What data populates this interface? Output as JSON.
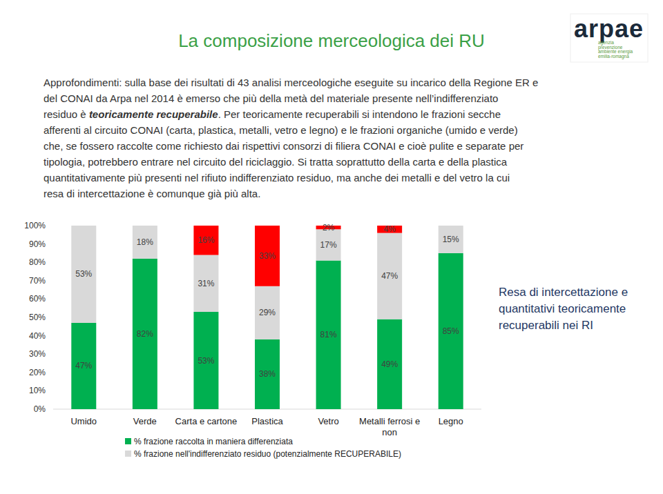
{
  "header": {
    "title": "La composizione merceologica dei RU",
    "intro": [
      [
        {
          "text": "Approfondimenti: sulla base dei risultati di 43 analisi merceologiche eseguite su incarico della Regione ER e"
        }
      ],
      [
        {
          "text": "del CONAI da Arpa nel 2014 è emerso  che più della metà del materiale presente nell’indifferenziato"
        }
      ],
      [
        {
          "text": "residuo è "
        },
        {
          "text": "teoricamente recuperabile",
          "bold_italic": true
        },
        {
          "text": ". Per teoricamente recuperabili si intendono le frazioni secche"
        }
      ],
      [
        {
          "text": "afferenti al circuito CONAI (carta, plastica, metalli, vetro e legno) e le frazioni organiche (umido e verde)"
        }
      ],
      [
        {
          "text": "che, se fossero raccolte come richiesto dai rispettivi consorzi di filiera CONAI e cioè pulite e separate per"
        }
      ],
      [
        {
          "text": "tipologia, potrebbero entrare nel circuito del riciclaggio. Si tratta soprattutto della carta e della plastica"
        }
      ],
      [
        {
          "text": "quantitativamente più presenti nel rifiuto indifferenziato residuo, ma anche dei metalli e del vetro la cui"
        }
      ],
      [
        {
          "text": "resa di intercettazione è comunque già più alta."
        }
      ]
    ]
  },
  "logo": {
    "name": "arpae",
    "lines": [
      "agenzia",
      "prevenzione",
      "ambiente energia",
      "emilia-romagna"
    ]
  },
  "chart_data": {
    "type": "bar",
    "stacked": true,
    "data_labels": true,
    "legend": "bottom",
    "annotation": [
      "Resa di intercettazione e",
      "quantitativi teoricamente",
      "recuperabili nei RI"
    ],
    "categories": [
      "Umido",
      "Verde",
      "Carta e cartone",
      "Plastica",
      "Vetro",
      "Metalli ferrosi e non",
      "Legno"
    ],
    "series": [
      {
        "name": "% frazione raccolta in maniera differenziata",
        "color": "#00b050",
        "values": [
          47,
          82,
          53,
          38,
          81,
          49,
          85
        ],
        "value_labels": [
          "47%",
          "82%",
          "53%",
          "38%",
          "81%",
          "49%",
          "85%"
        ]
      },
      {
        "name": "% frazione nell'indifferenziato residuo (potenzialmente RECUPERABILE)",
        "color": "#d9d9d9",
        "values": [
          53,
          18,
          31,
          29,
          17,
          47,
          15
        ],
        "value_labels": [
          "53%",
          "18%",
          "31%",
          "29%",
          "17%",
          "47%",
          "15%"
        ]
      },
      {
        "color": "#ff0000",
        "values": [
          null,
          null,
          16,
          33,
          2,
          4,
          null
        ],
        "value_labels": [
          null,
          null,
          "16%",
          "33%",
          "2%",
          "4%",
          null
        ]
      }
    ],
    "ylim": [
      0,
      100
    ],
    "yticks": [
      {
        "value": 0,
        "label": "0%"
      },
      {
        "value": 10,
        "label": "10%"
      },
      {
        "value": 20,
        "label": "20%"
      },
      {
        "value": 30,
        "label": "30%"
      },
      {
        "value": 40,
        "label": "40%"
      },
      {
        "value": 50,
        "label": "50%"
      },
      {
        "value": 60,
        "label": "60%"
      },
      {
        "value": 70,
        "label": "70%"
      },
      {
        "value": 80,
        "label": "80%"
      },
      {
        "value": 90,
        "label": "90%"
      },
      {
        "value": 100,
        "label": "100%"
      }
    ]
  }
}
